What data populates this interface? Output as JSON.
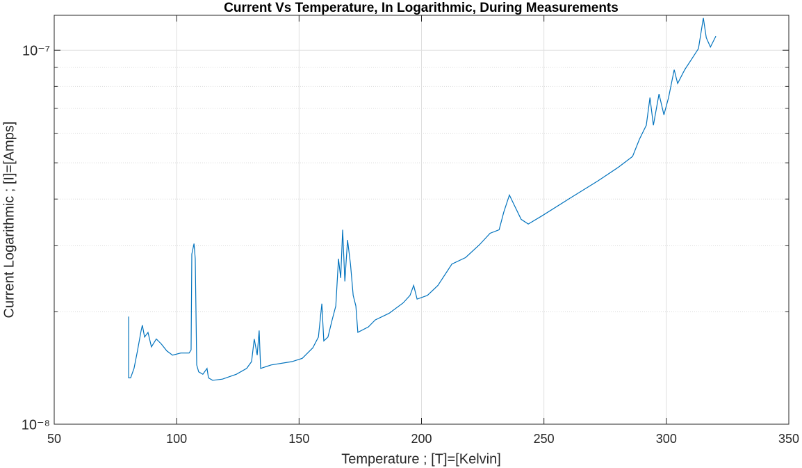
{
  "chart_data": {
    "type": "line",
    "title": "Current Vs Temperature, In Logarithmic, During Measurements",
    "xlabel": "Temperature ; [T]=[Kelvin]",
    "ylabel": "Current Logarithmic ; [I]=[Amps]",
    "yscale": "log",
    "grid": true,
    "minor_grid": true,
    "color": "#0072bd",
    "xlim": [
      50,
      350
    ],
    "xticks": [
      50,
      100,
      150,
      200,
      250,
      300,
      350
    ],
    "ylim": [
      1e-08,
      1.24e-07
    ],
    "yticks": [
      {
        "value": 1e-08,
        "label": "10⁻⁸"
      },
      {
        "value": 1e-07,
        "label": "10⁻⁷"
      }
    ],
    "yminorticks": [
      2e-08,
      3e-08,
      4e-08,
      5e-08,
      6e-08,
      7e-08,
      8e-08,
      9e-08
    ],
    "x": [
      80.4,
      80.4,
      81.2,
      82.6,
      84,
      85.5,
      86,
      86.9,
      88.3,
      89.7,
      91.7,
      93.7,
      96,
      98.3,
      101.7,
      105.1,
      105.9,
      106.2,
      107.1,
      107.6,
      108.2,
      109,
      110.7,
      112.4,
      113,
      114.7,
      118.7,
      124.4,
      128.6,
      130.6,
      131.7,
      132.9,
      133.7,
      134.3,
      138.6,
      147.1,
      151.3,
      155.6,
      157.9,
      159.3,
      160.1,
      161.8,
      163.5,
      165,
      166.1,
      167,
      167.8,
      168.7,
      169.8,
      171,
      172.1,
      173.2,
      174,
      178.3,
      181.1,
      186.8,
      192.5,
      195.3,
      196.8,
      198.2,
      202.4,
      206.7,
      212.4,
      218,
      223.7,
      228,
      231.7,
      233.6,
      235.9,
      237.9,
      240.7,
      243.6,
      249.3,
      260.6,
      272,
      280.5,
      286.2,
      289,
      291.8,
      293.3,
      294.7,
      297,
      299,
      300.9,
      303.2,
      304.6,
      307.5,
      310.3,
      313.1,
      315.1,
      316.3,
      318,
      320.2
    ],
    "values": [
      1.94e-08,
      1.33e-08,
      1.33e-08,
      1.41e-08,
      1.57e-08,
      1.78e-08,
      1.84e-08,
      1.71e-08,
      1.76e-08,
      1.61e-08,
      1.69e-08,
      1.64e-08,
      1.57e-08,
      1.53e-08,
      1.55e-08,
      1.55e-08,
      1.58e-08,
      2.85e-08,
      3.04e-08,
      2.77e-08,
      1.44e-08,
      1.38e-08,
      1.36e-08,
      1.41e-08,
      1.33e-08,
      1.31e-08,
      1.32e-08,
      1.36e-08,
      1.41e-08,
      1.47e-08,
      1.69e-08,
      1.53e-08,
      1.78e-08,
      1.41e-08,
      1.44e-08,
      1.47e-08,
      1.5e-08,
      1.6e-08,
      1.71e-08,
      2.1e-08,
      1.67e-08,
      1.71e-08,
      1.9e-08,
      2.07e-08,
      2.77e-08,
      2.46e-08,
      3.31e-08,
      2.41e-08,
      3.11e-08,
      2.68e-08,
      2.21e-08,
      2.07e-08,
      1.76e-08,
      1.82e-08,
      1.9e-08,
      1.98e-08,
      2.11e-08,
      2.21e-08,
      2.35e-08,
      2.16e-08,
      2.21e-08,
      2.35e-08,
      2.68e-08,
      2.79e-08,
      3.02e-08,
      3.24e-08,
      3.31e-08,
      3.69e-08,
      4.1e-08,
      3.85e-08,
      3.53e-08,
      3.43e-08,
      3.61e-08,
      4.02e-08,
      4.47e-08,
      4.87e-08,
      5.2e-08,
      5.78e-08,
      6.3e-08,
      7.47e-08,
      6.3e-08,
      7.64e-08,
      6.72e-08,
      7.47e-08,
      8.87e-08,
      8.15e-08,
      8.87e-08,
      9.46e-08,
      1.01e-07,
      1.22e-07,
      1.08e-07,
      1.02e-07,
      1.09e-07
    ]
  }
}
